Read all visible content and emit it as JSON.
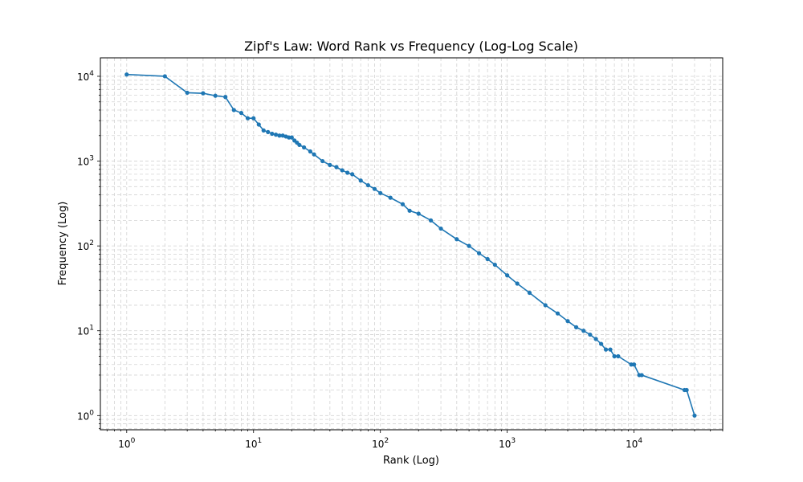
{
  "chart_data": {
    "type": "line",
    "title": "Zipf's Law: Word Rank vs Frequency (Log-Log Scale)",
    "xlabel": "Rank (Log)",
    "ylabel": "Frequency (Log)",
    "xscale": "log",
    "yscale": "log",
    "xlim": [
      0.62,
      50000
    ],
    "ylim": [
      0.68,
      16500
    ],
    "grid": true,
    "grid_style": "dashed",
    "legend": "none",
    "colors": {
      "series": "#1f77b4",
      "grid": "#d3d3d3",
      "axes": "#000000"
    },
    "xticks": [
      {
        "value": 1,
        "base": "10",
        "exp": "0"
      },
      {
        "value": 10,
        "base": "10",
        "exp": "1"
      },
      {
        "value": 100,
        "base": "10",
        "exp": "2"
      },
      {
        "value": 1000,
        "base": "10",
        "exp": "3"
      },
      {
        "value": 10000,
        "base": "10",
        "exp": "4"
      }
    ],
    "yticks": [
      {
        "value": 1,
        "base": "10",
        "exp": "0"
      },
      {
        "value": 10,
        "base": "10",
        "exp": "1"
      },
      {
        "value": 100,
        "base": "10",
        "exp": "2"
      },
      {
        "value": 1000,
        "base": "10",
        "exp": "3"
      },
      {
        "value": 10000,
        "base": "10",
        "exp": "4"
      }
    ],
    "series": [
      {
        "marker": "circle",
        "x": [
          1,
          2,
          3,
          4,
          5,
          6,
          7,
          8,
          9,
          10,
          11,
          12,
          13,
          14,
          15,
          16,
          17,
          18,
          19,
          20,
          21,
          22,
          23,
          25,
          28,
          30,
          35,
          40,
          45,
          50,
          55,
          60,
          70,
          80,
          90,
          100,
          120,
          150,
          170,
          200,
          250,
          300,
          400,
          500,
          600,
          700,
          800,
          1000,
          1200,
          1500,
          2000,
          2500,
          3000,
          3500,
          4000,
          4500,
          5000,
          5500,
          6000,
          6500,
          7000,
          7500,
          9500,
          10000,
          11000,
          11500,
          25000,
          26000,
          30000
        ],
        "y": [
          10500,
          10000,
          6400,
          6300,
          5900,
          5700,
          4000,
          3700,
          3200,
          3200,
          2700,
          2300,
          2200,
          2100,
          2050,
          2000,
          2000,
          1950,
          1900,
          1900,
          1750,
          1650,
          1550,
          1450,
          1300,
          1200,
          1000,
          900,
          850,
          780,
          730,
          700,
          590,
          520,
          470,
          420,
          370,
          310,
          260,
          240,
          200,
          160,
          120,
          100,
          82,
          70,
          60,
          45,
          36,
          28,
          20,
          16,
          13,
          11,
          10,
          9,
          8,
          7,
          6,
          6,
          5,
          5,
          4,
          4,
          3,
          3,
          2,
          2,
          1
        ]
      }
    ]
  }
}
